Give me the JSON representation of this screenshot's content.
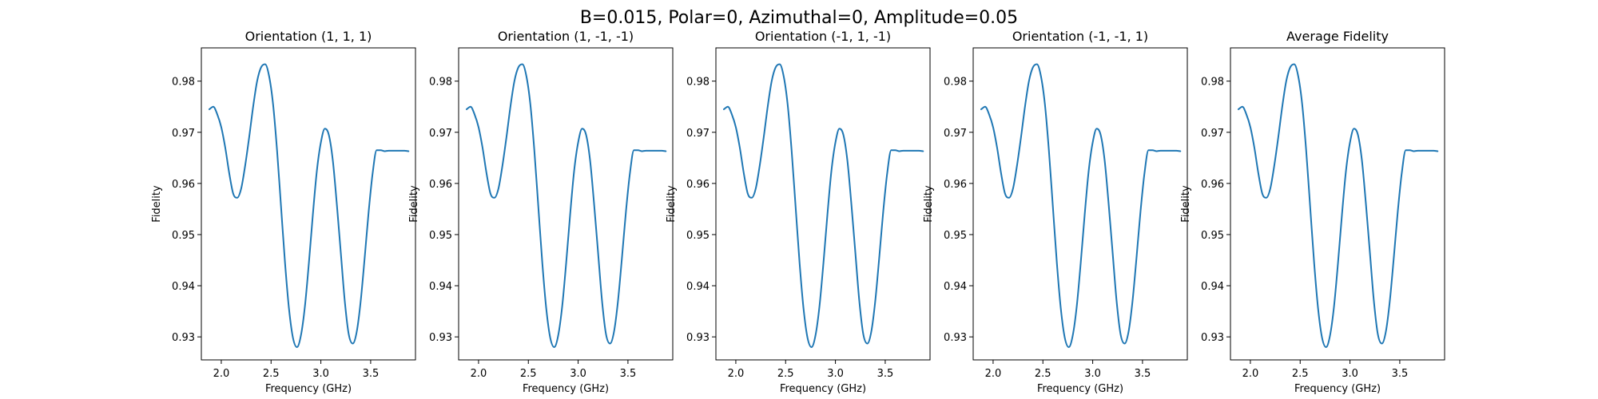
{
  "figure": {
    "suptitle": "B=0.015, Polar=0, Azimuthal=0, Amplitude=0.05"
  },
  "chart_data": [
    {
      "type": "line",
      "title": "Orientation (1, 1, 1)",
      "xlabel": "Frequency (GHz)",
      "ylabel": "Fidelity",
      "xlim": [
        1.8,
        3.95
      ],
      "ylim": [
        0.9255,
        0.9865
      ],
      "xticks": [
        2.0,
        2.5,
        3.0,
        3.5
      ],
      "xtick_labels": [
        "2.0",
        "2.5",
        "3.0",
        "3.5"
      ],
      "yticks": [
        0.93,
        0.94,
        0.95,
        0.96,
        0.97,
        0.98
      ],
      "ytick_labels": [
        "0.93",
        "0.94",
        "0.95",
        "0.96",
        "0.97",
        "0.98"
      ],
      "grid": false,
      "color": "#1f77b4",
      "series": [
        {
          "x": [
            1.88,
            1.92,
            1.96,
            2.0,
            2.04,
            2.08,
            2.12,
            2.16,
            2.2,
            2.24,
            2.28,
            2.32,
            2.36,
            2.4,
            2.44,
            2.48,
            2.52,
            2.56,
            2.6,
            2.64,
            2.68,
            2.72,
            2.76,
            2.8,
            2.84,
            2.88,
            2.92,
            2.96,
            3.0,
            3.04,
            3.08,
            3.12,
            3.16,
            3.2,
            3.24,
            3.28,
            3.32,
            3.36,
            3.4,
            3.44,
            3.48,
            3.52,
            3.56,
            3.6,
            3.64,
            3.68,
            3.72,
            3.76,
            3.8,
            3.84,
            3.88
          ],
          "y": [
            0.9745,
            0.975,
            0.9735,
            0.971,
            0.967,
            0.962,
            0.958,
            0.9572,
            0.959,
            0.9635,
            0.969,
            0.975,
            0.98,
            0.9827,
            0.9833,
            0.981,
            0.9755,
            0.9665,
            0.9555,
            0.9445,
            0.9355,
            0.9298,
            0.928,
            0.9303,
            0.936,
            0.9445,
            0.954,
            0.9625,
            0.968,
            0.9707,
            0.9695,
            0.9645,
            0.956,
            0.9465,
            0.937,
            0.9305,
            0.9287,
            0.931,
            0.937,
            0.9455,
            0.9545,
            0.962,
            0.9665,
            0.9665,
            0.9663,
            0.9664,
            0.9664,
            0.9664,
            0.9664,
            0.9664,
            0.9663
          ]
        }
      ]
    },
    {
      "type": "line",
      "title": "Orientation (1, -1, -1)",
      "xlabel": "Frequency (GHz)",
      "ylabel": "Fidelity",
      "xlim": [
        1.8,
        3.95
      ],
      "ylim": [
        0.9255,
        0.9865
      ],
      "xticks": [
        2.0,
        2.5,
        3.0,
        3.5
      ],
      "xtick_labels": [
        "2.0",
        "2.5",
        "3.0",
        "3.5"
      ],
      "yticks": [
        0.93,
        0.94,
        0.95,
        0.96,
        0.97,
        0.98
      ],
      "ytick_labels": [
        "0.93",
        "0.94",
        "0.95",
        "0.96",
        "0.97",
        "0.98"
      ],
      "grid": false,
      "color": "#1f77b4",
      "series": [
        {
          "x": [
            1.88,
            1.92,
            1.96,
            2.0,
            2.04,
            2.08,
            2.12,
            2.16,
            2.2,
            2.24,
            2.28,
            2.32,
            2.36,
            2.4,
            2.44,
            2.48,
            2.52,
            2.56,
            2.6,
            2.64,
            2.68,
            2.72,
            2.76,
            2.8,
            2.84,
            2.88,
            2.92,
            2.96,
            3.0,
            3.04,
            3.08,
            3.12,
            3.16,
            3.2,
            3.24,
            3.28,
            3.32,
            3.36,
            3.4,
            3.44,
            3.48,
            3.52,
            3.56,
            3.6,
            3.64,
            3.68,
            3.72,
            3.76,
            3.8,
            3.84,
            3.88
          ],
          "y": [
            0.9745,
            0.975,
            0.9735,
            0.971,
            0.967,
            0.962,
            0.958,
            0.9572,
            0.959,
            0.9635,
            0.969,
            0.975,
            0.98,
            0.9827,
            0.9833,
            0.981,
            0.9755,
            0.9665,
            0.9555,
            0.9445,
            0.9355,
            0.9298,
            0.928,
            0.9303,
            0.936,
            0.9445,
            0.954,
            0.9625,
            0.968,
            0.9707,
            0.9695,
            0.9645,
            0.956,
            0.9465,
            0.937,
            0.9305,
            0.9287,
            0.931,
            0.937,
            0.9455,
            0.9545,
            0.962,
            0.9665,
            0.9665,
            0.9663,
            0.9664,
            0.9664,
            0.9664,
            0.9664,
            0.9664,
            0.9663
          ]
        }
      ]
    },
    {
      "type": "line",
      "title": "Orientation (-1, 1, -1)",
      "xlabel": "Frequency (GHz)",
      "ylabel": "Fidelity",
      "xlim": [
        1.8,
        3.95
      ],
      "ylim": [
        0.9255,
        0.9865
      ],
      "xticks": [
        2.0,
        2.5,
        3.0,
        3.5
      ],
      "xtick_labels": [
        "2.0",
        "2.5",
        "3.0",
        "3.5"
      ],
      "yticks": [
        0.93,
        0.94,
        0.95,
        0.96,
        0.97,
        0.98
      ],
      "ytick_labels": [
        "0.93",
        "0.94",
        "0.95",
        "0.96",
        "0.97",
        "0.98"
      ],
      "grid": false,
      "color": "#1f77b4",
      "series": [
        {
          "x": [
            1.88,
            1.92,
            1.96,
            2.0,
            2.04,
            2.08,
            2.12,
            2.16,
            2.2,
            2.24,
            2.28,
            2.32,
            2.36,
            2.4,
            2.44,
            2.48,
            2.52,
            2.56,
            2.6,
            2.64,
            2.68,
            2.72,
            2.76,
            2.8,
            2.84,
            2.88,
            2.92,
            2.96,
            3.0,
            3.04,
            3.08,
            3.12,
            3.16,
            3.2,
            3.24,
            3.28,
            3.32,
            3.36,
            3.4,
            3.44,
            3.48,
            3.52,
            3.56,
            3.6,
            3.64,
            3.68,
            3.72,
            3.76,
            3.8,
            3.84,
            3.88
          ],
          "y": [
            0.9745,
            0.975,
            0.9735,
            0.971,
            0.967,
            0.962,
            0.958,
            0.9572,
            0.959,
            0.9635,
            0.969,
            0.975,
            0.98,
            0.9827,
            0.9833,
            0.981,
            0.9755,
            0.9665,
            0.9555,
            0.9445,
            0.9355,
            0.9298,
            0.928,
            0.9303,
            0.936,
            0.9445,
            0.954,
            0.9625,
            0.968,
            0.9707,
            0.9695,
            0.9645,
            0.956,
            0.9465,
            0.937,
            0.9305,
            0.9287,
            0.931,
            0.937,
            0.9455,
            0.9545,
            0.962,
            0.9665,
            0.9665,
            0.9663,
            0.9664,
            0.9664,
            0.9664,
            0.9664,
            0.9664,
            0.9663
          ]
        }
      ]
    },
    {
      "type": "line",
      "title": "Orientation (-1, -1, 1)",
      "xlabel": "Frequency (GHz)",
      "ylabel": "Fidelity",
      "xlim": [
        1.8,
        3.95
      ],
      "ylim": [
        0.9255,
        0.9865
      ],
      "xticks": [
        2.0,
        2.5,
        3.0,
        3.5
      ],
      "xtick_labels": [
        "2.0",
        "2.5",
        "3.0",
        "3.5"
      ],
      "yticks": [
        0.93,
        0.94,
        0.95,
        0.96,
        0.97,
        0.98
      ],
      "ytick_labels": [
        "0.93",
        "0.94",
        "0.95",
        "0.96",
        "0.97",
        "0.98"
      ],
      "grid": false,
      "color": "#1f77b4",
      "series": [
        {
          "x": [
            1.88,
            1.92,
            1.96,
            2.0,
            2.04,
            2.08,
            2.12,
            2.16,
            2.2,
            2.24,
            2.28,
            2.32,
            2.36,
            2.4,
            2.44,
            2.48,
            2.52,
            2.56,
            2.6,
            2.64,
            2.68,
            2.72,
            2.76,
            2.8,
            2.84,
            2.88,
            2.92,
            2.96,
            3.0,
            3.04,
            3.08,
            3.12,
            3.16,
            3.2,
            3.24,
            3.28,
            3.32,
            3.36,
            3.4,
            3.44,
            3.48,
            3.52,
            3.56,
            3.6,
            3.64,
            3.68,
            3.72,
            3.76,
            3.8,
            3.84,
            3.88
          ],
          "y": [
            0.9745,
            0.975,
            0.9735,
            0.971,
            0.967,
            0.962,
            0.958,
            0.9572,
            0.959,
            0.9635,
            0.969,
            0.975,
            0.98,
            0.9827,
            0.9833,
            0.981,
            0.9755,
            0.9665,
            0.9555,
            0.9445,
            0.9355,
            0.9298,
            0.928,
            0.9303,
            0.936,
            0.9445,
            0.954,
            0.9625,
            0.968,
            0.9707,
            0.9695,
            0.9645,
            0.956,
            0.9465,
            0.937,
            0.9305,
            0.9287,
            0.931,
            0.937,
            0.9455,
            0.9545,
            0.962,
            0.9665,
            0.9665,
            0.9663,
            0.9664,
            0.9664,
            0.9664,
            0.9664,
            0.9664,
            0.9663
          ]
        }
      ]
    },
    {
      "type": "line",
      "title": "Average Fidelity",
      "xlabel": "Frequency (GHz)",
      "ylabel": "Fidelity",
      "xlim": [
        1.8,
        3.95
      ],
      "ylim": [
        0.9255,
        0.9865
      ],
      "xticks": [
        2.0,
        2.5,
        3.0,
        3.5
      ],
      "xtick_labels": [
        "2.0",
        "2.5",
        "3.0",
        "3.5"
      ],
      "yticks": [
        0.93,
        0.94,
        0.95,
        0.96,
        0.97,
        0.98
      ],
      "ytick_labels": [
        "0.93",
        "0.94",
        "0.95",
        "0.96",
        "0.97",
        "0.98"
      ],
      "grid": false,
      "color": "#1f77b4",
      "series": [
        {
          "x": [
            1.88,
            1.92,
            1.96,
            2.0,
            2.04,
            2.08,
            2.12,
            2.16,
            2.2,
            2.24,
            2.28,
            2.32,
            2.36,
            2.4,
            2.44,
            2.48,
            2.52,
            2.56,
            2.6,
            2.64,
            2.68,
            2.72,
            2.76,
            2.8,
            2.84,
            2.88,
            2.92,
            2.96,
            3.0,
            3.04,
            3.08,
            3.12,
            3.16,
            3.2,
            3.24,
            3.28,
            3.32,
            3.36,
            3.4,
            3.44,
            3.48,
            3.52,
            3.56,
            3.6,
            3.64,
            3.68,
            3.72,
            3.76,
            3.8,
            3.84,
            3.88
          ],
          "y": [
            0.9745,
            0.975,
            0.9735,
            0.971,
            0.967,
            0.962,
            0.958,
            0.9572,
            0.959,
            0.9635,
            0.969,
            0.975,
            0.98,
            0.9827,
            0.9833,
            0.981,
            0.9755,
            0.9665,
            0.9555,
            0.9445,
            0.9355,
            0.9298,
            0.928,
            0.9303,
            0.936,
            0.9445,
            0.954,
            0.9625,
            0.968,
            0.9707,
            0.9695,
            0.9645,
            0.956,
            0.9465,
            0.937,
            0.9305,
            0.9287,
            0.931,
            0.937,
            0.9455,
            0.9545,
            0.962,
            0.9665,
            0.9665,
            0.9663,
            0.9664,
            0.9664,
            0.9664,
            0.9664,
            0.9664,
            0.9663
          ]
        }
      ]
    }
  ]
}
